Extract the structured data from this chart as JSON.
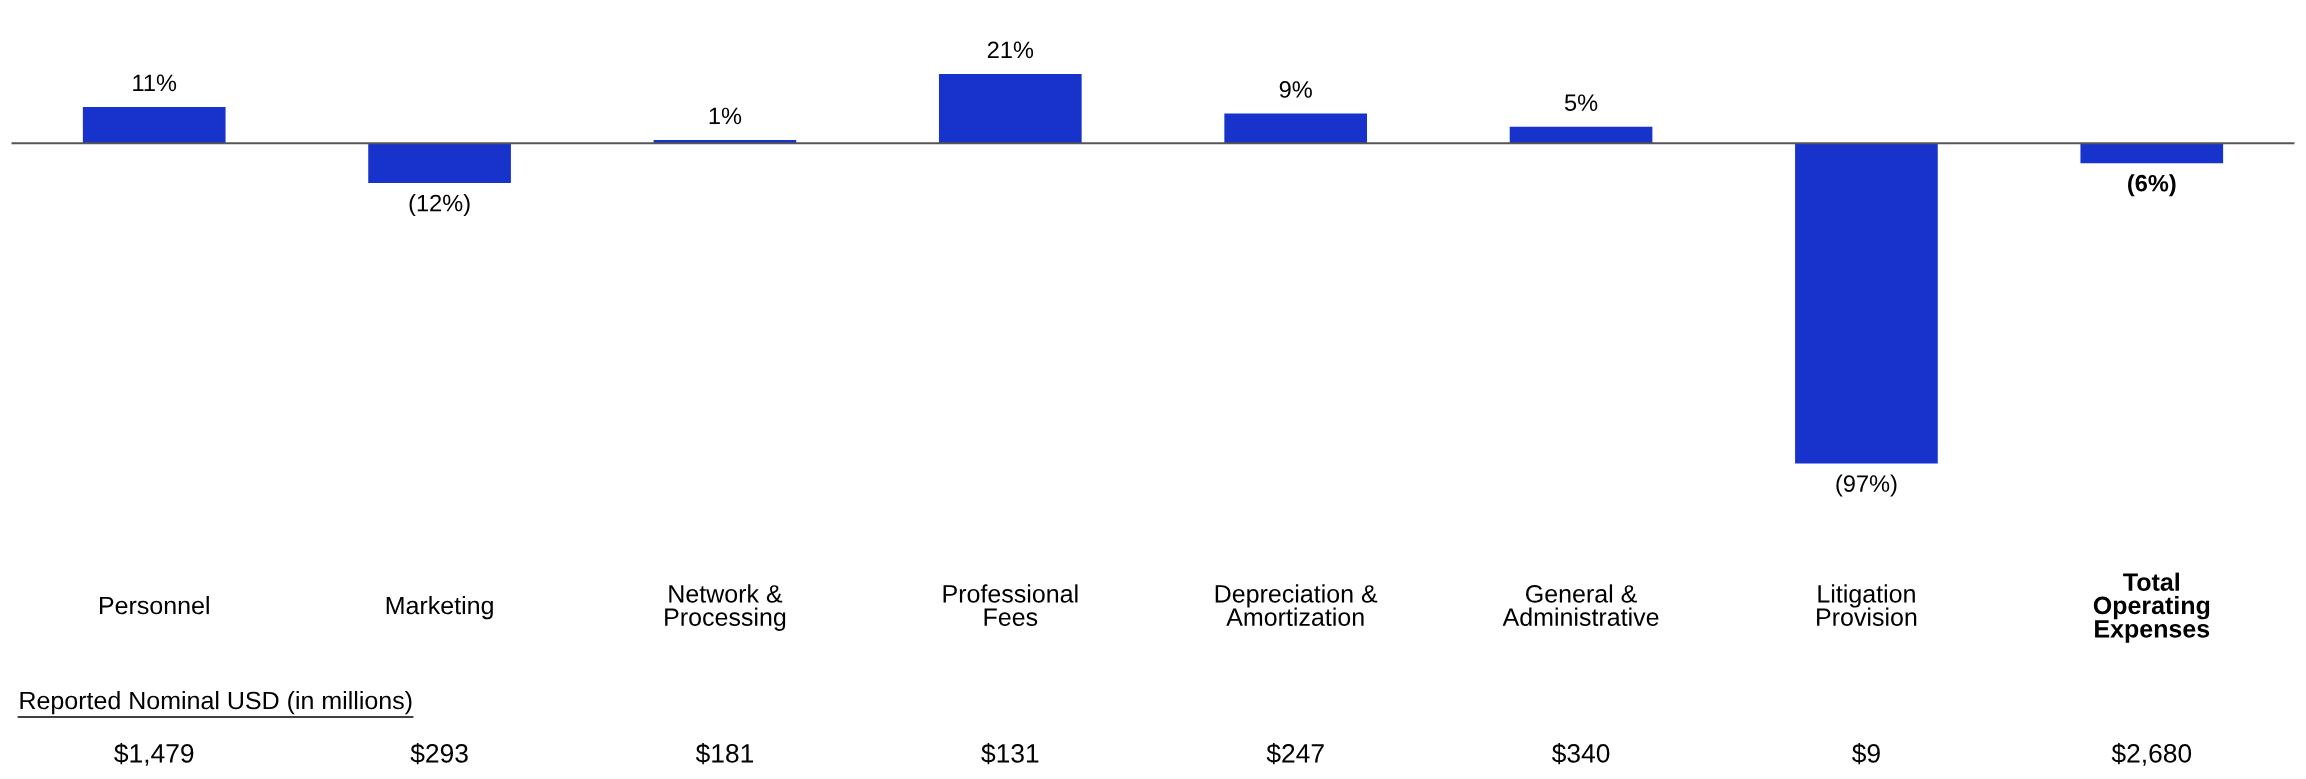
{
  "chart_data": {
    "type": "bar",
    "categories": [
      "Personnel",
      "Marketing",
      "Network &\nProcessing",
      "Professional\nFees",
      "Depreciation &\nAmortization",
      "General &\nAdministrative",
      "Litigation\nProvision",
      "Total\nOperating\nExpenses"
    ],
    "values": [
      11,
      -12,
      1,
      21,
      9,
      5,
      -97,
      -6
    ],
    "value_labels": [
      "11%",
      "(12%)",
      "1%",
      "21%",
      "9%",
      "5%",
      "(97%)",
      "(6%)"
    ],
    "color": "#1733cc",
    "annotations": [
      "Reported Nominal USD (in millions)",
      "$1,479",
      "$293",
      "$181",
      "$131",
      "$247",
      "$340",
      "$9",
      "$2,680"
    ]
  }
}
